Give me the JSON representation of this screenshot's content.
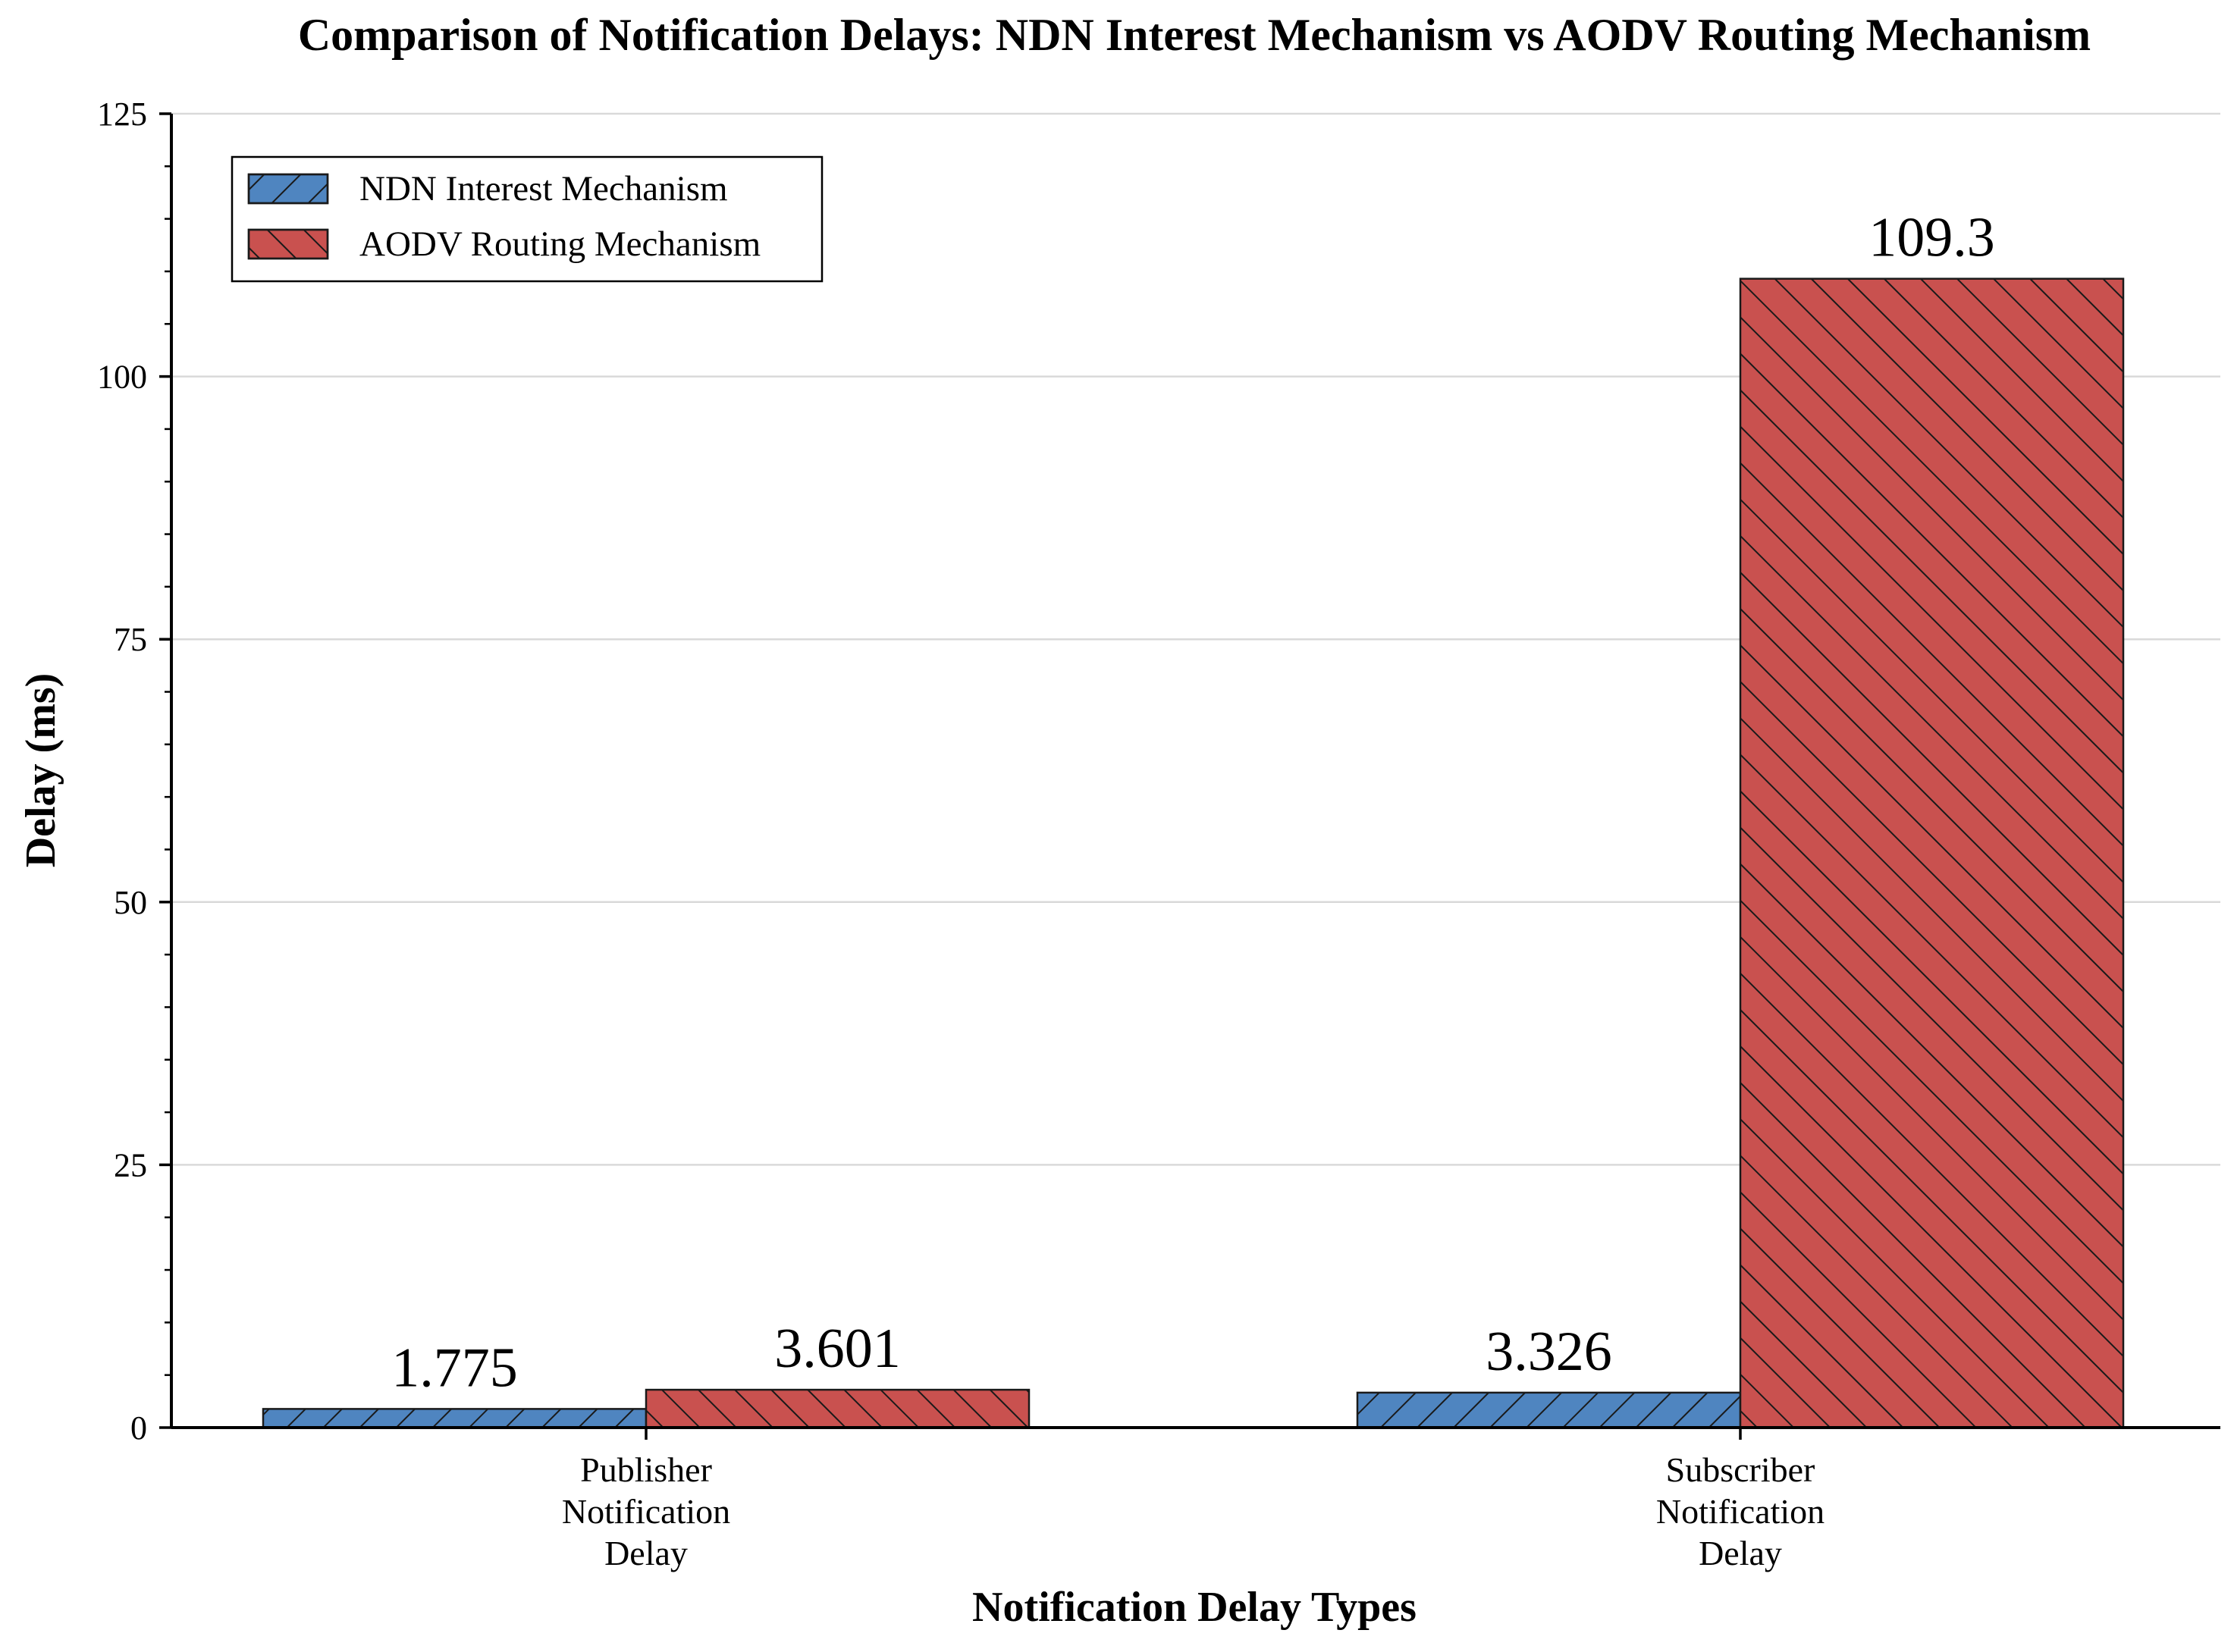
{
  "chart_data": {
    "type": "bar",
    "title": "Comparison of Notification Delays: NDN Interest Mechanism vs AODV Routing Mechanism",
    "xlabel": "Notification Delay Types",
    "ylabel": "Delay (ms)",
    "ylim": [
      0,
      125
    ],
    "yticks": [
      0,
      25,
      50,
      75,
      100,
      125
    ],
    "grid": true,
    "legend_position": "top-left",
    "categories": [
      [
        "Publisher",
        "Notification",
        "Delay"
      ],
      [
        "Subscriber",
        "Notification",
        "Delay"
      ]
    ],
    "series": [
      {
        "name": "NDN Interest Mechanism",
        "values": [
          1.775,
          3.326
        ],
        "labels": [
          "1.775",
          "3.326"
        ],
        "color": "#4f85c0",
        "hatch": "forward"
      },
      {
        "name": "AODV Routing Mechanism",
        "values": [
          3.601,
          109.3
        ],
        "labels": [
          "3.601",
          "109.3"
        ],
        "color": "#c9514f",
        "hatch": "backward"
      }
    ]
  }
}
